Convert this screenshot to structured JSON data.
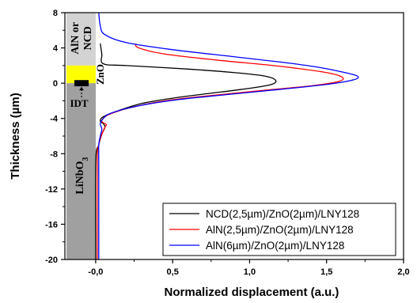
{
  "chart_data": {
    "type": "line",
    "xlabel": "Normalized displacement (a.u.)",
    "ylabel": "Thickness (µm)",
    "xlim": [
      -0.2,
      2.0
    ],
    "ylim": [
      -20,
      8
    ],
    "x_ticks": [
      0.0,
      0.5,
      1.0,
      1.5,
      2.0
    ],
    "x_tick_labels": [
      "-0,0",
      "0,5",
      "1,0",
      "1,5",
      "2,0"
    ],
    "y_ticks": [
      8,
      4,
      0,
      -4,
      -8,
      -12,
      -16,
      -20
    ],
    "y_tick_labels": [
      "8",
      "4",
      "0",
      "-4",
      "-8",
      "-12",
      "-16",
      "-20"
    ],
    "legend_position": "bottom-right",
    "layers": [
      {
        "label": "AlN or NCD",
        "y_top": 8,
        "y_bottom": 2,
        "color": "#d3d3d3"
      },
      {
        "label": "ZnO",
        "y_top": 2,
        "y_bottom": 0,
        "color": "#ffff00"
      },
      {
        "label": "LiNbO3",
        "y_top": 0,
        "y_bottom": -20,
        "color": "#a0a0a0"
      }
    ],
    "annotations": {
      "idt": "IDT"
    },
    "series": [
      {
        "name": "NCD(2,5µm)/ZnO(2µm)/LNY128",
        "color": "#000000",
        "points": [
          [
            0.03,
            4.5
          ],
          [
            0.04,
            3.3
          ],
          [
            0.05,
            2.2
          ],
          [
            0.2,
            2.0
          ],
          [
            0.6,
            1.6
          ],
          [
            0.9,
            1.2
          ],
          [
            1.1,
            0.8
          ],
          [
            1.17,
            0.3
          ],
          [
            1.13,
            -0.2
          ],
          [
            0.95,
            -0.7
          ],
          [
            0.72,
            -1.2
          ],
          [
            0.5,
            -1.7
          ],
          [
            0.3,
            -2.3
          ],
          [
            0.15,
            -3.1
          ],
          [
            0.05,
            -3.8
          ],
          [
            0.03,
            -4.3
          ],
          [
            0.05,
            -4.6
          ],
          [
            0.06,
            -5.0
          ],
          [
            0.04,
            -5.8
          ],
          [
            0.02,
            -7
          ],
          [
            0.0,
            -9
          ],
          [
            0.0,
            -20
          ]
        ]
      },
      {
        "name": "AlN(2,5µm)/ZnO(2µm)/LNY128",
        "color": "#ff0000",
        "points": [
          [
            0.26,
            4.5
          ],
          [
            0.28,
            4.0
          ],
          [
            0.45,
            3.3
          ],
          [
            0.8,
            2.6
          ],
          [
            1.1,
            2.1
          ],
          [
            1.3,
            1.7
          ],
          [
            1.5,
            1.2
          ],
          [
            1.6,
            0.7
          ],
          [
            1.58,
            0.2
          ],
          [
            1.4,
            -0.3
          ],
          [
            1.1,
            -0.8
          ],
          [
            0.75,
            -1.4
          ],
          [
            0.45,
            -2.0
          ],
          [
            0.22,
            -2.8
          ],
          [
            0.08,
            -3.6
          ],
          [
            0.04,
            -4.2
          ],
          [
            0.05,
            -4.5
          ],
          [
            0.07,
            -4.7
          ],
          [
            0.06,
            -5.0
          ],
          [
            0.04,
            -5.8
          ],
          [
            0.02,
            -7
          ],
          [
            0.01,
            -9
          ],
          [
            0.01,
            -20
          ]
        ]
      },
      {
        "name": "AlN(6µm)/ZnO(2µm)/LNY128",
        "color": "#0000ff",
        "points": [
          [
            0.02,
            8
          ],
          [
            0.03,
            6.5
          ],
          [
            0.06,
            5.5
          ],
          [
            0.2,
            4.6
          ],
          [
            0.5,
            3.8
          ],
          [
            0.9,
            3.0
          ],
          [
            1.2,
            2.4
          ],
          [
            1.45,
            1.8
          ],
          [
            1.62,
            1.2
          ],
          [
            1.7,
            0.8
          ],
          [
            1.68,
            0.4
          ],
          [
            1.52,
            -0.1
          ],
          [
            1.2,
            -0.7
          ],
          [
            0.85,
            -1.3
          ],
          [
            0.52,
            -1.9
          ],
          [
            0.27,
            -2.6
          ],
          [
            0.1,
            -3.4
          ],
          [
            0.05,
            -4.0
          ],
          [
            0.03,
            -4.6
          ],
          [
            0.04,
            -5.2
          ],
          [
            0.03,
            -6
          ],
          [
            0.02,
            -7
          ],
          [
            0.02,
            -9
          ],
          [
            0.02,
            -20
          ]
        ]
      }
    ]
  }
}
